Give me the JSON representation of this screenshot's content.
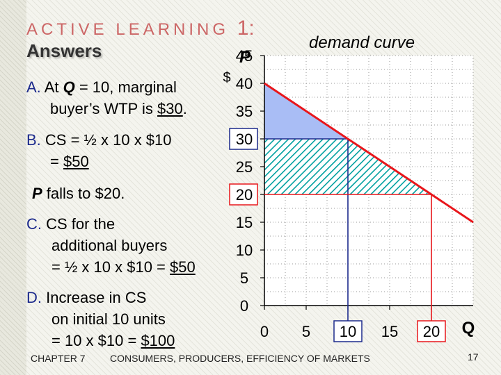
{
  "header": {
    "title": "ACTIVE LEARNING",
    "number": "1",
    "colon": ":",
    "subtitle": "Answers"
  },
  "answers": {
    "a_letter": "A.",
    "a_line1_pre": " At ",
    "a_q": "Q",
    "a_line1_post": " = 10, marginal",
    "a_line2_pre": "buyer’s WTP is ",
    "a_line2_val": "$30",
    "a_line2_end": ".",
    "b_letter": "B.",
    "b_line1": " CS = ½ x 10 x $10",
    "b_line2_pre": "= ",
    "b_line2_val": "$50",
    "p_label": "P",
    "p_line": " falls to $20.",
    "c_letter": "C.",
    "c_line1": " CS for the",
    "c_line2": "additional buyers",
    "c_line3_pre": "= ½ x 10 x $10 = ",
    "c_line3_val": "$50",
    "d_letter": "D.",
    "d_line1": " Increase in CS",
    "d_line2": "on initial 10 units",
    "d_line3_pre": "= 10 x $10 = ",
    "d_line3_val": "$100"
  },
  "footer": {
    "chapter": "CHAPTER 7",
    "title": "CONSUMERS, PRODUCERS, EFFICIENCY OF MARKETS",
    "page": "17"
  },
  "chart_data": {
    "type": "line",
    "title": "demand curve",
    "xlabel": "Q",
    "ylabel": "P",
    "yunit": "$",
    "xlim": [
      0,
      25
    ],
    "ylim": [
      0,
      45
    ],
    "x_ticks": [
      "0",
      "5",
      "10",
      "15",
      "20"
    ],
    "y_ticks": [
      "0",
      "5",
      "10",
      "15",
      "20",
      "25",
      "30",
      "35",
      "40",
      "45"
    ],
    "highlighted_x_ticks": [
      "10",
      "20"
    ],
    "highlighted_y_ticks": [
      "20",
      "30"
    ],
    "grid": true,
    "series": [
      {
        "x": [
          0,
          25
        ],
        "y": [
          40,
          15
        ],
        "color": "#e8161b"
      }
    ],
    "markers": [
      {
        "x": 10,
        "y": 30,
        "color": "#1c2a8c"
      },
      {
        "x": 20,
        "y": 20,
        "color": "#e8161b"
      }
    ],
    "regions": [
      {
        "kind": "initial-consumer-surplus",
        "fill": "#a9bdf5",
        "vertices": [
          [
            0,
            40
          ],
          [
            10,
            30
          ],
          [
            0,
            30
          ]
        ]
      },
      {
        "kind": "increase-in-cs",
        "fill": "#00a0a0",
        "vertices": [
          [
            0,
            30
          ],
          [
            10,
            30
          ],
          [
            10,
            20
          ],
          [
            0,
            20
          ]
        ]
      },
      {
        "kind": "cs-additional-buyers",
        "fill": "#00a0a0",
        "vertices": [
          [
            10,
            30
          ],
          [
            20,
            20
          ],
          [
            10,
            20
          ]
        ]
      }
    ]
  }
}
